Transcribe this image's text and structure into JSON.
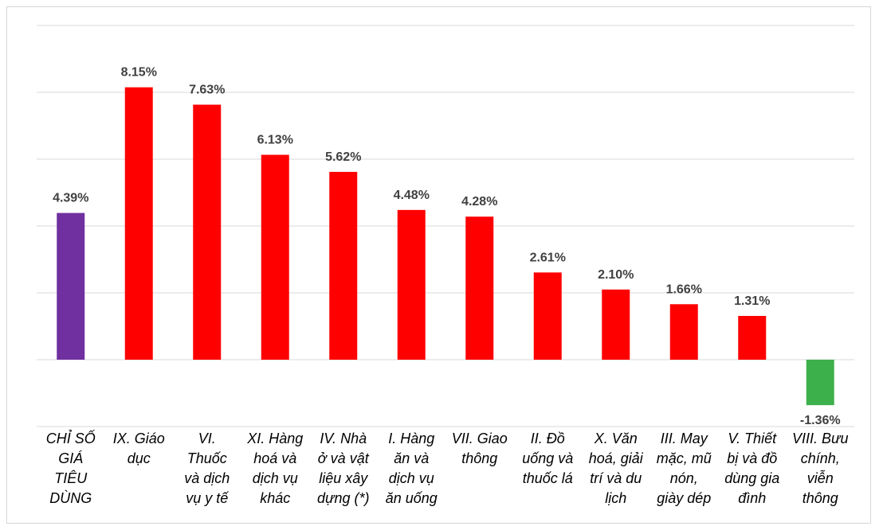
{
  "chart_data": {
    "type": "bar",
    "categories": [
      "CHỈ SỐ GIÁ TIÊU DÙNG",
      "IX. Giáo dục",
      "VI. Thuốc và dịch vụ y tế",
      "XI. Hàng hoá và dịch vụ khác",
      "IV. Nhà ở và vật liệu xây dựng (*)",
      "I. Hàng ăn và dịch vụ ăn uống",
      "VII. Giao thông",
      "II. Đồ uống và thuốc lá",
      "X. Văn hoá, giải trí và du lịch",
      "III. May mặc, mũ nón, giày dép",
      "V. Thiết bị và đồ dùng gia đình",
      "VIII. Bưu chính, viễn thông"
    ],
    "category_lines": [
      [
        "CHỈ SỐ",
        "GIÁ",
        "TIÊU",
        "DÙNG"
      ],
      [
        "IX. Giáo",
        "dục"
      ],
      [
        "VI.",
        "Thuốc",
        "và dịch",
        "vụ y tế"
      ],
      [
        "XI. Hàng",
        "hoá và",
        "dịch vụ",
        "khác"
      ],
      [
        "IV. Nhà",
        "ở và vật",
        "liệu xây",
        "dựng (*)"
      ],
      [
        "I. Hàng",
        "ăn và",
        "dịch vụ",
        "ăn uống"
      ],
      [
        "VII. Giao",
        "thông"
      ],
      [
        "II. Đồ",
        "uống và",
        "thuốc lá"
      ],
      [
        "X. Văn",
        "hoá, giải",
        "trí và du",
        "lịch"
      ],
      [
        "III. May",
        "mặc, mũ",
        "nón,",
        "giày dép"
      ],
      [
        "V. Thiết",
        "bị và đồ",
        "dùng gia",
        "đình"
      ],
      [
        "VIII. Bưu",
        "chính,",
        "viễn",
        "thông"
      ]
    ],
    "values": [
      4.39,
      8.15,
      7.63,
      6.13,
      5.62,
      4.48,
      4.28,
      2.61,
      2.1,
      1.66,
      1.31,
      -1.36
    ],
    "value_labels": [
      "4.39%",
      "8.15%",
      "7.63%",
      "6.13%",
      "5.62%",
      "4.48%",
      "4.28%",
      "2.61%",
      "2.10%",
      "1.66%",
      "1.31%",
      "-1.36%"
    ],
    "colors": [
      "#7030a0",
      "#ff0000",
      "#ff0000",
      "#ff0000",
      "#ff0000",
      "#ff0000",
      "#ff0000",
      "#ff0000",
      "#ff0000",
      "#ff0000",
      "#ff0000",
      "#3cb04a"
    ],
    "ylim": [
      -2,
      10
    ],
    "gridlines": [
      -2,
      0,
      2,
      4,
      6,
      8,
      10
    ],
    "grid": true,
    "legend": false,
    "title": "",
    "xlabel": "",
    "ylabel": ""
  }
}
